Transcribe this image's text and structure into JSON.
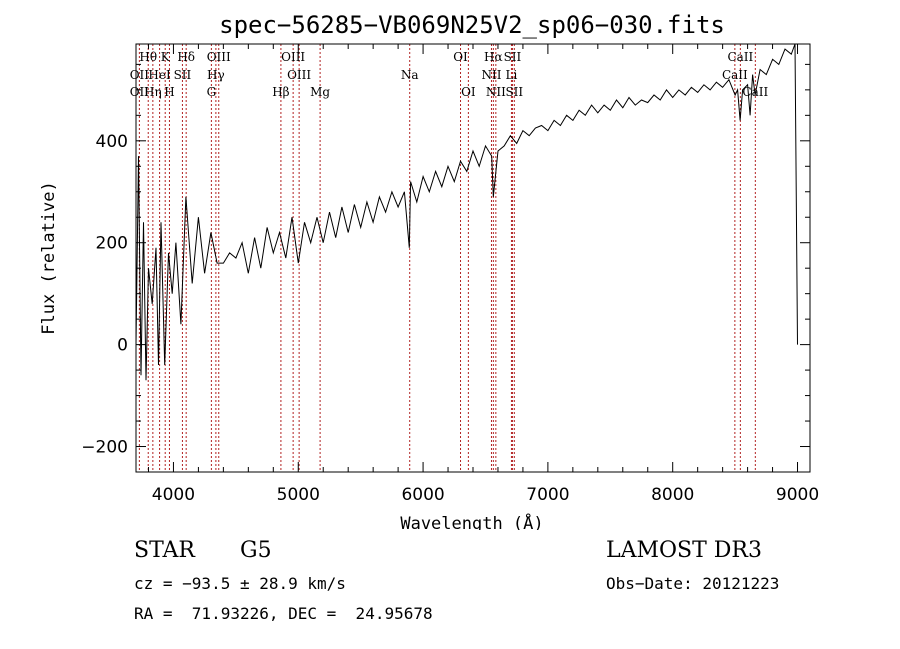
{
  "chart_data": {
    "type": "line",
    "title": "spec−56285−VB069N25V2_sp06−030.fits",
    "xlabel": "Wavelength (Å)",
    "ylabel": "Flux (relative)",
    "xlim": [
      3700,
      9100
    ],
    "ylim": [
      -250,
      590
    ],
    "x_ticks": [
      4000,
      5000,
      6000,
      7000,
      8000,
      9000
    ],
    "y_ticks": [
      -200,
      0,
      200,
      400
    ],
    "series": [
      {
        "name": "flux",
        "x": [
          3700,
          3720,
          3740,
          3760,
          3780,
          3800,
          3830,
          3860,
          3880,
          3900,
          3930,
          3960,
          3990,
          4020,
          4060,
          4100,
          4150,
          4200,
          4250,
          4300,
          4350,
          4400,
          4450,
          4500,
          4550,
          4600,
          4650,
          4700,
          4750,
          4800,
          4850,
          4900,
          4950,
          5000,
          5050,
          5100,
          5150,
          5200,
          5250,
          5300,
          5350,
          5400,
          5450,
          5500,
          5550,
          5600,
          5650,
          5700,
          5750,
          5800,
          5850,
          5890,
          5900,
          5950,
          6000,
          6050,
          6100,
          6150,
          6200,
          6250,
          6300,
          6350,
          6400,
          6450,
          6500,
          6550,
          6563,
          6600,
          6650,
          6700,
          6750,
          6800,
          6850,
          6900,
          6950,
          7000,
          7050,
          7100,
          7150,
          7200,
          7250,
          7300,
          7350,
          7400,
          7450,
          7500,
          7550,
          7600,
          7650,
          7700,
          7750,
          7800,
          7850,
          7900,
          7950,
          8000,
          8050,
          8100,
          8150,
          8200,
          8250,
          8300,
          8350,
          8400,
          8450,
          8500,
          8520,
          8540,
          8560,
          8600,
          8620,
          8640,
          8660,
          8700,
          8750,
          8800,
          8850,
          8900,
          8950,
          8980,
          9000
        ],
        "values": [
          0,
          370,
          -60,
          240,
          -70,
          150,
          80,
          190,
          -40,
          240,
          -40,
          180,
          100,
          200,
          40,
          290,
          120,
          250,
          140,
          220,
          160,
          160,
          180,
          170,
          200,
          140,
          210,
          150,
          230,
          180,
          220,
          170,
          250,
          160,
          240,
          200,
          250,
          200,
          260,
          210,
          270,
          220,
          275,
          230,
          280,
          240,
          290,
          260,
          300,
          270,
          300,
          190,
          320,
          280,
          330,
          300,
          340,
          310,
          350,
          320,
          360,
          340,
          380,
          350,
          390,
          370,
          290,
          380,
          390,
          410,
          395,
          420,
          410,
          425,
          430,
          420,
          440,
          430,
          450,
          440,
          460,
          450,
          470,
          455,
          470,
          460,
          480,
          465,
          485,
          470,
          480,
          475,
          490,
          480,
          500,
          485,
          500,
          490,
          505,
          495,
          510,
          500,
          515,
          505,
          520,
          490,
          500,
          440,
          500,
          510,
          450,
          530,
          490,
          540,
          530,
          560,
          550,
          580,
          570,
          590,
          0
        ]
      }
    ],
    "spectral_lines": [
      {
        "name": "Hθ",
        "wavelength": 3798,
        "row": 1
      },
      {
        "name": "OII",
        "wavelength": 3727,
        "row": 2
      },
      {
        "name": "OII",
        "wavelength": 3727,
        "row": 3
      },
      {
        "name": "K",
        "wavelength": 3934,
        "row": 1
      },
      {
        "name": "HeI",
        "wavelength": 3889,
        "row": 2
      },
      {
        "name": "Hη",
        "wavelength": 3835,
        "row": 3
      },
      {
        "name": "Hδ",
        "wavelength": 4102,
        "row": 1
      },
      {
        "name": "SII",
        "wavelength": 4072,
        "row": 2
      },
      {
        "name": "H",
        "wavelength": 3968,
        "row": 3
      },
      {
        "name": "OIII",
        "wavelength": 4363,
        "row": 1
      },
      {
        "name": "Hγ",
        "wavelength": 4340,
        "row": 2
      },
      {
        "name": "G",
        "wavelength": 4304,
        "row": 3
      },
      {
        "name": "OIII",
        "wavelength": 4959,
        "row": 1
      },
      {
        "name": "OIII",
        "wavelength": 5007,
        "row": 2
      },
      {
        "name": "Hβ",
        "wavelength": 4861,
        "row": 3
      },
      {
        "name": "Mg",
        "wavelength": 5175,
        "row": 3
      },
      {
        "name": "Na",
        "wavelength": 5893,
        "row": 2
      },
      {
        "name": "OI",
        "wavelength": 6300,
        "row": 1
      },
      {
        "name": "OI",
        "wavelength": 6363,
        "row": 3
      },
      {
        "name": "Hα",
        "wavelength": 6563,
        "row": 1
      },
      {
        "name": "SII",
        "wavelength": 6716,
        "row": 1
      },
      {
        "name": "NII",
        "wavelength": 6548,
        "row": 2
      },
      {
        "name": "Li",
        "wavelength": 6708,
        "row": 2
      },
      {
        "name": "NII",
        "wavelength": 6583,
        "row": 3
      },
      {
        "name": "SII",
        "wavelength": 6731,
        "row": 3
      },
      {
        "name": "CaII",
        "wavelength": 8542,
        "row": 1
      },
      {
        "name": "CaII",
        "wavelength": 8498,
        "row": 2
      },
      {
        "name": "CaII",
        "wavelength": 8662,
        "row": 3
      }
    ]
  },
  "info": {
    "class": "STAR",
    "subclass": "G5",
    "survey": "LAMOST DR3",
    "cz": "cz = −93.5 ± 28.9 km/s",
    "obs_date": "Obs−Date: 20121223",
    "coords": "RA =  71.93226, DEC =  24.95678"
  },
  "colors": {
    "line": "#000000",
    "marker": "#b22222",
    "axis": "#000000"
  }
}
